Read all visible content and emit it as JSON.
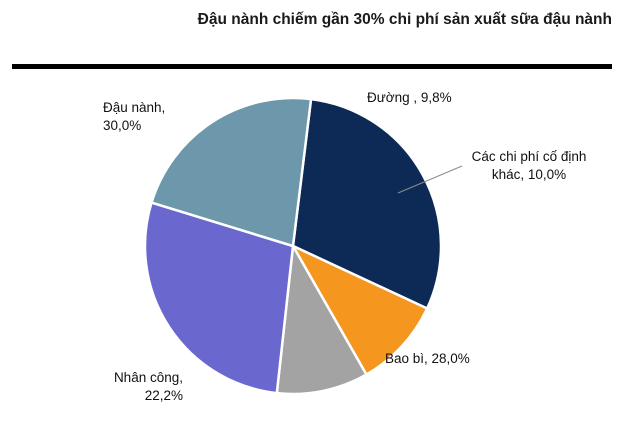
{
  "chart_data": {
    "type": "pie",
    "title": "Đậu nành chiếm gần 30% chi phí sản xuất sữa đậu nành",
    "slices": [
      {
        "label_lines": [
          "Đậu nành,",
          "30,0%"
        ],
        "value": 30.0,
        "color": "#0d2a57"
      },
      {
        "label_lines": [
          "Đường , 9,8%"
        ],
        "value": 9.8,
        "color": "#f5961e"
      },
      {
        "label_lines": [
          "Các chi phí cố định",
          "khác, 10,0%"
        ],
        "value": 10.0,
        "color": "#a3a3a3"
      },
      {
        "label_lines": [
          "Bao bì, 28,0%"
        ],
        "value": 28.0,
        "color": "#6a67cf"
      },
      {
        "label_lines": [
          "Nhân công,",
          "22,2%"
        ],
        "value": 22.2,
        "color": "#6d97aa"
      }
    ]
  }
}
